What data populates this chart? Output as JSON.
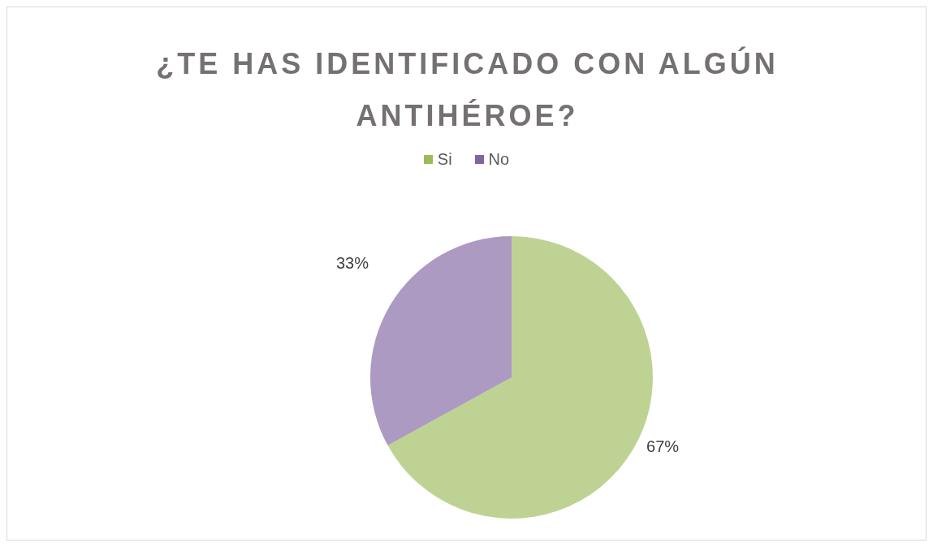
{
  "chart_data": {
    "type": "pie",
    "title": "¿TE HAS IDENTIFICADO CON ALGÚN ANTIHÉROE?",
    "categories": [
      "Si",
      "No"
    ],
    "values": [
      67,
      33
    ],
    "value_labels": [
      "67%",
      "33%"
    ],
    "colors": [
      "#9bbb59",
      "#8064a2"
    ],
    "legend": "top"
  }
}
